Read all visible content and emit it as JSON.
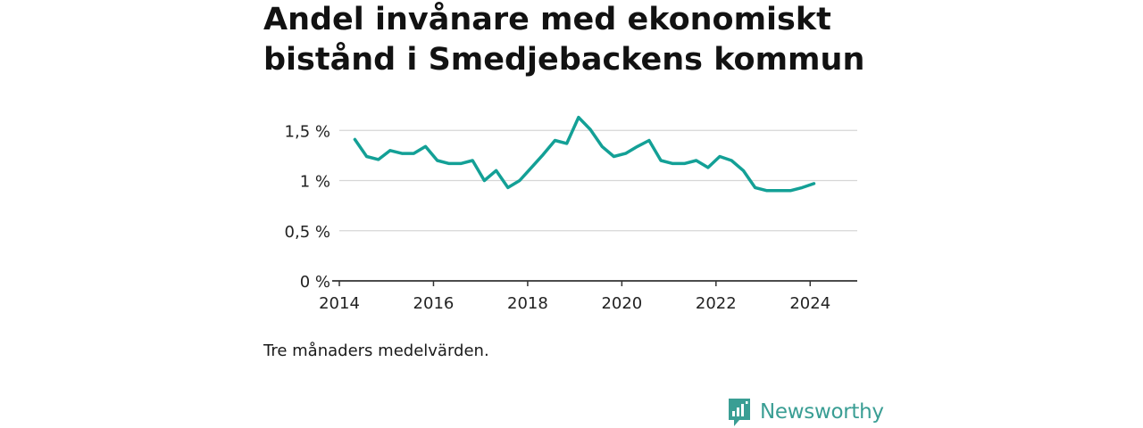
{
  "title_lines": [
    "Andel invånare med ekonomiskt",
    "bistånd i Smedjebackens kommun"
  ],
  "note": "Tre månaders medelvärden.",
  "brand": {
    "name": "Newsworthy",
    "icon": "bar-chart-speech-bubble-icon",
    "color": "#3a9e94"
  },
  "chart_data": {
    "type": "line",
    "title": "Andel invånare med ekonomiskt bistånd i Smedjebackens kommun",
    "xlabel": "",
    "ylabel": "",
    "ylim": [
      0,
      1.6
    ],
    "xlim": [
      2014,
      2025
    ],
    "grid": true,
    "x_ticks": [
      2014,
      2016,
      2018,
      2020,
      2022,
      2024
    ],
    "x_tick_labels": [
      "2014",
      "2016",
      "2018",
      "2020",
      "2022",
      "2024"
    ],
    "y_ticks": [
      0,
      0.5,
      1.0,
      1.5
    ],
    "y_tick_labels": [
      "0 %",
      "0,5 %",
      "1 %",
      "1,5 %"
    ],
    "color": "#13a096",
    "series": [
      {
        "x": [
          2014.33,
          2014.58,
          2014.83,
          2015.08,
          2015.33,
          2015.58,
          2015.83,
          2016.08,
          2016.33,
          2016.58,
          2016.83,
          2017.08,
          2017.33,
          2017.58,
          2017.83,
          2018.08,
          2018.33,
          2018.58,
          2018.83,
          2019.08,
          2019.33,
          2019.58,
          2019.83,
          2020.08,
          2020.33,
          2020.58,
          2020.83,
          2021.08,
          2021.33,
          2021.58,
          2021.83,
          2022.08,
          2022.33,
          2022.58,
          2022.83,
          2023.08,
          2023.33,
          2023.58,
          2023.83,
          2024.08
        ],
        "values": [
          1.41,
          1.24,
          1.21,
          1.3,
          1.27,
          1.27,
          1.34,
          1.2,
          1.17,
          1.17,
          1.2,
          1.0,
          1.1,
          0.93,
          1.0,
          1.13,
          1.26,
          1.4,
          1.37,
          1.63,
          1.51,
          1.34,
          1.24,
          1.27,
          1.34,
          1.4,
          1.2,
          1.17,
          1.17,
          1.2,
          1.13,
          1.24,
          1.2,
          1.1,
          0.93,
          0.9,
          0.9,
          0.9,
          0.93,
          0.97
        ]
      }
    ]
  }
}
